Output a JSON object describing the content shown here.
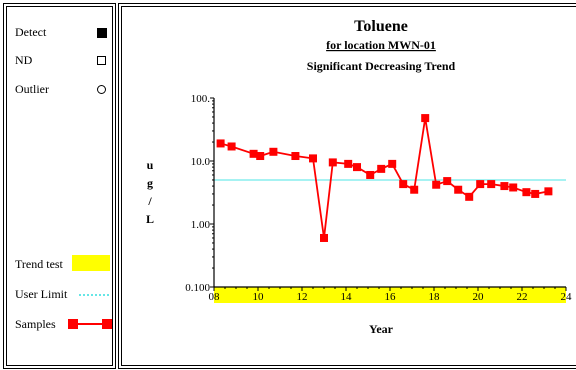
{
  "legend": {
    "detect_label": "Detect",
    "nd_label": "ND",
    "outlier_label": "Outlier",
    "trend_test_label": "Trend test",
    "user_limit_label": "User Limit",
    "samples_label": "Samples"
  },
  "colors": {
    "series": "#ff0000",
    "trend_band": "#ffff00",
    "user_limit": "#88eeee"
  },
  "chart_data": {
    "type": "line",
    "title": "Toluene",
    "subtitle": "for location MWN-01",
    "trend_label": "Significant Decreasing Trend",
    "xlabel": "Year",
    "ylabel": "ug/L",
    "yscale": "log",
    "xlim": [
      8,
      24
    ],
    "ylim": [
      0.1,
      100
    ],
    "x_ticks": [
      "08",
      "10",
      "12",
      "14",
      "16",
      "18",
      "20",
      "22",
      "24"
    ],
    "y_ticks": [
      "0.100",
      "1.00",
      "10.0",
      "100."
    ],
    "user_limit": 5,
    "trend_test_range": [
      8,
      24
    ],
    "grid": false,
    "series": [
      {
        "x": [
          8.3,
          8.8,
          9.8,
          10.1,
          10.7,
          11.7,
          12.5,
          13.0,
          13.4,
          14.1,
          14.5,
          15.1,
          15.6,
          16.1,
          16.6,
          17.1,
          17.6,
          18.1,
          18.6,
          19.1,
          19.6,
          20.1,
          20.6,
          21.2,
          21.6,
          22.2,
          22.6,
          23.2
        ],
        "values": [
          19,
          17,
          13,
          12,
          14,
          12,
          11,
          0.6,
          9.5,
          9,
          8,
          6,
          7.5,
          9,
          4.3,
          3.5,
          48,
          4.2,
          4.8,
          3.5,
          2.7,
          4.3,
          4.3,
          4,
          3.8,
          3.2,
          3.0,
          3.3
        ]
      }
    ]
  }
}
